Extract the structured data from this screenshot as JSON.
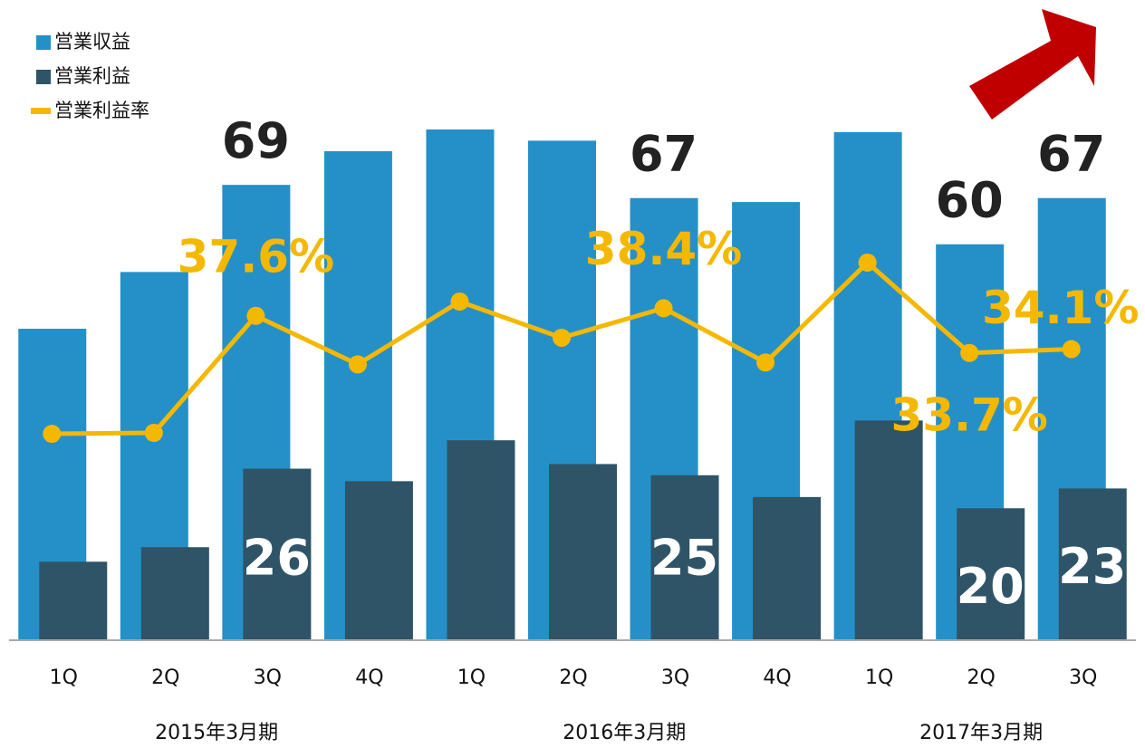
{
  "chart_data": {
    "type": "bar",
    "categories": [
      "1Q",
      "2Q",
      "3Q",
      "4Q",
      "1Q",
      "2Q",
      "3Q",
      "4Q",
      "1Q",
      "2Q",
      "3Q"
    ],
    "groups": [
      {
        "label": "2015年3月期",
        "size": 4
      },
      {
        "label": "2016年3月期",
        "size": 4
      },
      {
        "label": "2017年3月期",
        "size": 3
      }
    ],
    "ylim": [
      0,
      80
    ],
    "y2lim": [
      3.5,
      59
    ],
    "series": [
      {
        "name": "営業収益",
        "type": "bar",
        "color": "#2590c8",
        "values": [
          47.2,
          55.8,
          69,
          74.1,
          77.4,
          75.7,
          67,
          66.4,
          77,
          60,
          67
        ],
        "value_labels": [
          null,
          null,
          "69",
          null,
          null,
          null,
          "67",
          null,
          null,
          "60",
          "67"
        ]
      },
      {
        "name": "営業利益",
        "type": "bar",
        "color": "#2f5467",
        "values": [
          11.9,
          14.1,
          26,
          24.1,
          30.3,
          26.7,
          25,
          21.7,
          33.3,
          20,
          23
        ],
        "value_labels": [
          null,
          null,
          "26",
          null,
          null,
          null,
          "25",
          null,
          null,
          "20",
          "23"
        ]
      },
      {
        "name": "営業利益率",
        "type": "line",
        "axis": "y2",
        "color": "#f5b800",
        "values": [
          25.2,
          25.3,
          37.6,
          32.5,
          39.1,
          35.3,
          38.4,
          32.7,
          43.2,
          33.7,
          34.1
        ],
        "value_labels": [
          null,
          null,
          "37.6%",
          null,
          null,
          null,
          "38.4%",
          null,
          null,
          "33.7%",
          "34.1%"
        ]
      }
    ]
  }
}
